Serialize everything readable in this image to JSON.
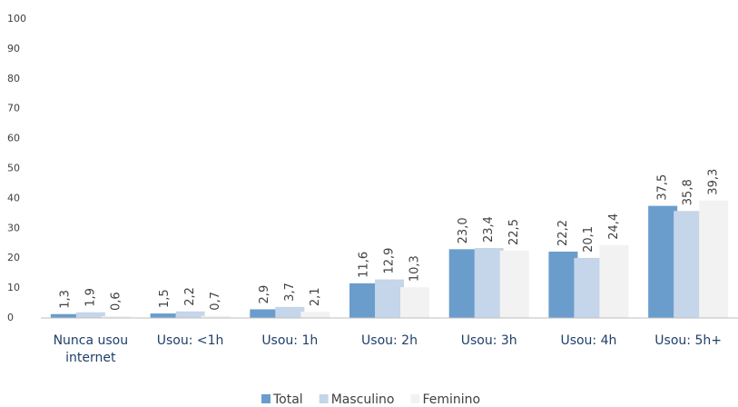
{
  "chart_data": {
    "type": "bar",
    "categories": [
      "Nunca usou internet",
      "Usou: <1h",
      "Usou: 1h",
      "Usou: 2h",
      "Usou: 3h",
      "Usou: 4h",
      "Usou: 5h+"
    ],
    "series": [
      {
        "name": "Total",
        "color": "#6a9dcc",
        "values": [
          1.3,
          1.5,
          2.9,
          11.6,
          23.0,
          22.2,
          37.5
        ],
        "value_labels": [
          "1,3",
          "1,5",
          "2,9",
          "11,6",
          "23,0",
          "22,2",
          "37,5"
        ]
      },
      {
        "name": "Masculino",
        "color": "#c5d5ea",
        "values": [
          1.9,
          2.2,
          3.7,
          12.9,
          23.4,
          20.1,
          35.8
        ],
        "value_labels": [
          "1,9",
          "2,2",
          "3,7",
          "12,9",
          "23,4",
          "20,1",
          "35,8"
        ]
      },
      {
        "name": "Feminino",
        "color": "#f2f2f2",
        "values": [
          0.6,
          0.7,
          2.1,
          10.3,
          22.5,
          24.4,
          39.3
        ],
        "value_labels": [
          "0,6",
          "0,7",
          "2,1",
          "10,3",
          "22,5",
          "24,4",
          "39,3"
        ]
      }
    ],
    "ylim": [
      0,
      100
    ],
    "yticks": [
      0,
      10,
      20,
      30,
      40,
      50,
      60,
      70,
      80,
      90,
      100
    ],
    "grid": false
  }
}
